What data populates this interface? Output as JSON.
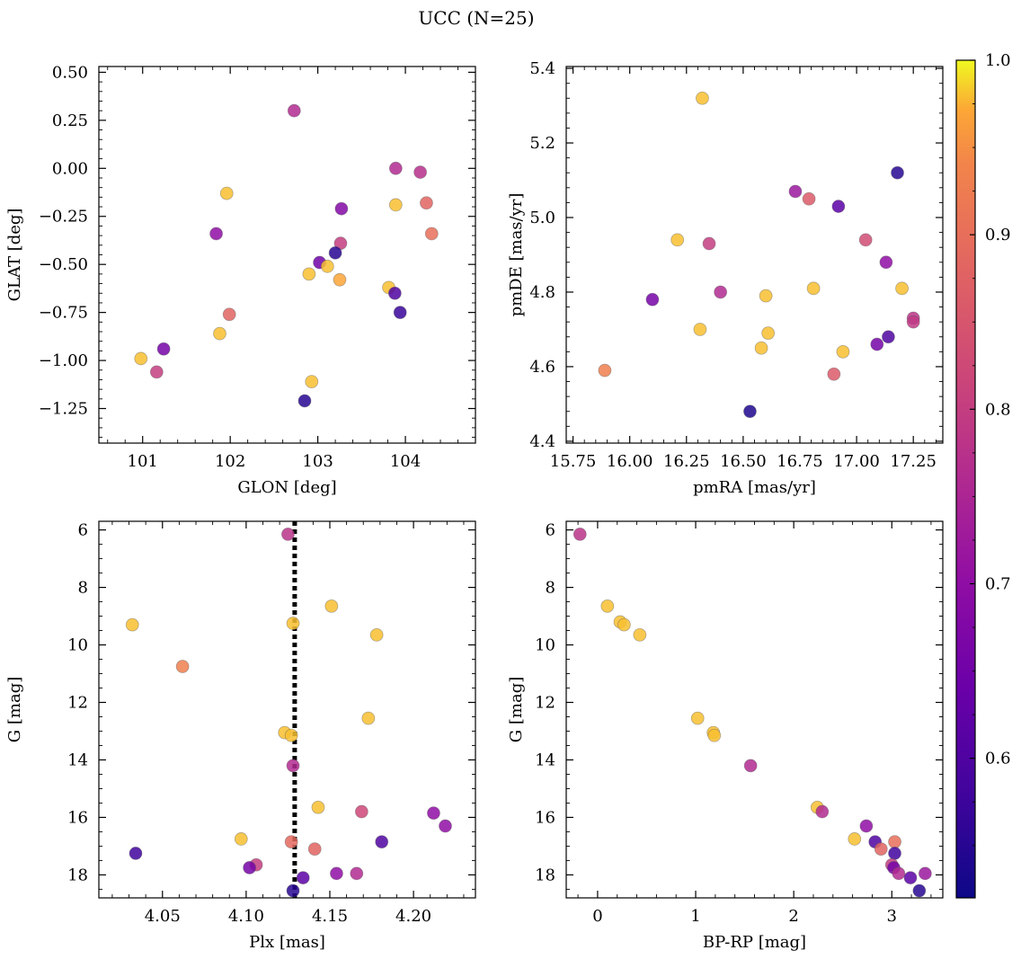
{
  "chart_data": {
    "type": "scatter",
    "title": "UCC (N=25)",
    "colorbar": {
      "colormap": "plasma",
      "range": [
        0.52,
        1.0
      ],
      "ticks": [
        0.6,
        0.7,
        0.8,
        0.9,
        1.0
      ],
      "tick_labels": [
        "0.6",
        "0.7",
        "0.8",
        "0.9",
        "1.0"
      ],
      "placement": "right"
    },
    "panels": [
      {
        "id": "glon-glat",
        "xlabel": "GLON [deg]",
        "ylabel": "GLAT [deg]",
        "xlim": [
          100.5,
          104.8
        ],
        "ylim": [
          -1.43,
          0.53
        ],
        "invert_y": false,
        "xticks": [
          101,
          102,
          103,
          104
        ],
        "xtick_labels": [
          "101",
          "102",
          "103",
          "104"
        ],
        "yticks": [
          -1.25,
          -1.0,
          -0.75,
          -0.5,
          -0.25,
          0.0,
          0.25,
          0.5
        ],
        "ytick_labels": [
          "−1.25",
          "−1.00",
          "−0.75",
          "−0.50",
          "−0.25",
          "0.00",
          "0.25",
          "0.50"
        ],
        "points": [
          {
            "x": 102.73,
            "y": 0.3,
            "c": 0.76
          },
          {
            "x": 103.89,
            "y": 0.0,
            "c": 0.76
          },
          {
            "x": 104.17,
            "y": -0.02,
            "c": 0.77
          },
          {
            "x": 101.96,
            "y": -0.13,
            "c": 0.98
          },
          {
            "x": 103.89,
            "y": -0.19,
            "c": 0.98
          },
          {
            "x": 104.24,
            "y": -0.18,
            "c": 0.88
          },
          {
            "x": 103.27,
            "y": -0.21,
            "c": 0.68
          },
          {
            "x": 104.3,
            "y": -0.34,
            "c": 0.9
          },
          {
            "x": 101.84,
            "y": -0.34,
            "c": 0.7
          },
          {
            "x": 103.26,
            "y": -0.39,
            "c": 0.8
          },
          {
            "x": 103.2,
            "y": -0.44,
            "c": 0.55
          },
          {
            "x": 103.02,
            "y": -0.49,
            "c": 0.65
          },
          {
            "x": 103.11,
            "y": -0.51,
            "c": 0.98
          },
          {
            "x": 102.9,
            "y": -0.55,
            "c": 0.98
          },
          {
            "x": 103.25,
            "y": -0.58,
            "c": 0.97
          },
          {
            "x": 103.81,
            "y": -0.62,
            "c": 0.98
          },
          {
            "x": 103.88,
            "y": -0.65,
            "c": 0.6
          },
          {
            "x": 103.94,
            "y": -0.75,
            "c": 0.57
          },
          {
            "x": 101.99,
            "y": -0.76,
            "c": 0.88
          },
          {
            "x": 101.88,
            "y": -0.86,
            "c": 0.98
          },
          {
            "x": 101.24,
            "y": -0.94,
            "c": 0.66
          },
          {
            "x": 100.98,
            "y": -0.99,
            "c": 0.98
          },
          {
            "x": 101.16,
            "y": -1.06,
            "c": 0.8
          },
          {
            "x": 102.93,
            "y": -1.11,
            "c": 0.98
          },
          {
            "x": 102.85,
            "y": -1.21,
            "c": 0.55
          }
        ]
      },
      {
        "id": "pmra-pmde",
        "xlabel": "pmRA [mas/yr]",
        "ylabel": "pmDE [mas/yr]",
        "xlim": [
          15.72,
          17.38
        ],
        "ylim": [
          4.395,
          5.405
        ],
        "invert_y": false,
        "xticks": [
          15.75,
          16.0,
          16.25,
          16.5,
          16.75,
          17.0,
          17.25
        ],
        "xtick_labels": [
          "15.75",
          "16.00",
          "16.25",
          "16.50",
          "16.75",
          "17.00",
          "17.25"
        ],
        "yticks": [
          4.4,
          4.6,
          4.8,
          5.0,
          5.2,
          5.4
        ],
        "ytick_labels": [
          "4.4",
          "4.6",
          "4.8",
          "5.0",
          "5.2",
          "5.4"
        ],
        "points": [
          {
            "x": 16.32,
            "y": 5.32,
            "c": 0.98
          },
          {
            "x": 17.18,
            "y": 5.12,
            "c": 0.55
          },
          {
            "x": 16.73,
            "y": 5.07,
            "c": 0.72
          },
          {
            "x": 16.79,
            "y": 5.05,
            "c": 0.86
          },
          {
            "x": 16.92,
            "y": 5.03,
            "c": 0.62
          },
          {
            "x": 16.21,
            "y": 4.94,
            "c": 0.98
          },
          {
            "x": 16.35,
            "y": 4.93,
            "c": 0.8
          },
          {
            "x": 17.04,
            "y": 4.94,
            "c": 0.83
          },
          {
            "x": 17.13,
            "y": 4.88,
            "c": 0.7
          },
          {
            "x": 17.2,
            "y": 4.81,
            "c": 0.98
          },
          {
            "x": 16.4,
            "y": 4.8,
            "c": 0.76
          },
          {
            "x": 16.81,
            "y": 4.81,
            "c": 0.98
          },
          {
            "x": 16.6,
            "y": 4.79,
            "c": 0.98
          },
          {
            "x": 16.1,
            "y": 4.78,
            "c": 0.66
          },
          {
            "x": 17.25,
            "y": 4.73,
            "c": 0.78
          },
          {
            "x": 17.25,
            "y": 4.72,
            "c": 0.79
          },
          {
            "x": 16.31,
            "y": 4.7,
            "c": 0.98
          },
          {
            "x": 16.61,
            "y": 4.69,
            "c": 0.98
          },
          {
            "x": 17.14,
            "y": 4.68,
            "c": 0.6
          },
          {
            "x": 17.09,
            "y": 4.66,
            "c": 0.66
          },
          {
            "x": 16.58,
            "y": 4.65,
            "c": 0.98
          },
          {
            "x": 16.94,
            "y": 4.64,
            "c": 0.98
          },
          {
            "x": 15.89,
            "y": 4.59,
            "c": 0.93
          },
          {
            "x": 16.9,
            "y": 4.58,
            "c": 0.86
          },
          {
            "x": 16.53,
            "y": 4.48,
            "c": 0.54
          }
        ]
      },
      {
        "id": "plx-g",
        "xlabel": "Plx [mas]",
        "ylabel": "G [mag]",
        "xlim": [
          4.012,
          4.237
        ],
        "ylim": [
          5.7,
          18.8
        ],
        "invert_y": true,
        "xticks": [
          4.05,
          4.1,
          4.15,
          4.2
        ],
        "xtick_labels": [
          "4.05",
          "4.10",
          "4.15",
          "4.20"
        ],
        "yticks": [
          6,
          8,
          10,
          12,
          14,
          16,
          18
        ],
        "ytick_labels": [
          "6",
          "8",
          "10",
          "12",
          "14",
          "16",
          "18"
        ],
        "vline": {
          "x": 4.129,
          "style": "dotted"
        },
        "points": [
          {
            "x": 4.125,
            "y": 6.15,
            "c": 0.78
          },
          {
            "x": 4.151,
            "y": 8.65,
            "c": 0.98
          },
          {
            "x": 4.032,
            "y": 9.3,
            "c": 0.98
          },
          {
            "x": 4.128,
            "y": 9.25,
            "c": 0.98
          },
          {
            "x": 4.178,
            "y": 9.65,
            "c": 0.98
          },
          {
            "x": 4.062,
            "y": 10.75,
            "c": 0.93
          },
          {
            "x": 4.173,
            "y": 12.55,
            "c": 0.98
          },
          {
            "x": 4.123,
            "y": 13.05,
            "c": 0.98
          },
          {
            "x": 4.127,
            "y": 13.15,
            "c": 0.98
          },
          {
            "x": 4.128,
            "y": 14.2,
            "c": 0.76
          },
          {
            "x": 4.143,
            "y": 15.65,
            "c": 0.98
          },
          {
            "x": 4.169,
            "y": 15.8,
            "c": 0.82
          },
          {
            "x": 4.212,
            "y": 15.85,
            "c": 0.7
          },
          {
            "x": 4.219,
            "y": 16.3,
            "c": 0.7
          },
          {
            "x": 4.097,
            "y": 16.75,
            "c": 0.98
          },
          {
            "x": 4.127,
            "y": 16.85,
            "c": 0.89
          },
          {
            "x": 4.181,
            "y": 16.85,
            "c": 0.6
          },
          {
            "x": 4.141,
            "y": 17.1,
            "c": 0.88
          },
          {
            "x": 4.034,
            "y": 17.25,
            "c": 0.58
          },
          {
            "x": 4.106,
            "y": 17.65,
            "c": 0.8
          },
          {
            "x": 4.102,
            "y": 17.75,
            "c": 0.66
          },
          {
            "x": 4.154,
            "y": 17.95,
            "c": 0.7
          },
          {
            "x": 4.166,
            "y": 17.95,
            "c": 0.76
          },
          {
            "x": 4.134,
            "y": 18.1,
            "c": 0.62
          },
          {
            "x": 4.128,
            "y": 18.55,
            "c": 0.55
          }
        ]
      },
      {
        "id": "bprp-g",
        "xlabel": "BP-RP [mag]",
        "ylabel": "G [mag]",
        "xlim": [
          -0.32,
          3.52
        ],
        "ylim": [
          5.7,
          18.8
        ],
        "invert_y": true,
        "xticks": [
          0,
          1,
          2,
          3
        ],
        "xtick_labels": [
          "0",
          "1",
          "2",
          "3"
        ],
        "yticks": [
          6,
          8,
          10,
          12,
          14,
          16,
          18
        ],
        "ytick_labels": [
          "6",
          "8",
          "10",
          "12",
          "14",
          "16",
          "18"
        ],
        "points": [
          {
            "x": -0.18,
            "y": 6.15,
            "c": 0.78
          },
          {
            "x": 0.1,
            "y": 8.65,
            "c": 0.98
          },
          {
            "x": 0.23,
            "y": 9.2,
            "c": 0.98
          },
          {
            "x": 0.27,
            "y": 9.3,
            "c": 0.98
          },
          {
            "x": 0.43,
            "y": 9.65,
            "c": 0.98
          },
          {
            "x": 1.02,
            "y": 12.55,
            "c": 0.98
          },
          {
            "x": 1.18,
            "y": 13.05,
            "c": 0.98
          },
          {
            "x": 1.19,
            "y": 13.15,
            "c": 0.98
          },
          {
            "x": 1.56,
            "y": 14.2,
            "c": 0.76
          },
          {
            "x": 2.24,
            "y": 15.65,
            "c": 0.98
          },
          {
            "x": 2.29,
            "y": 15.8,
            "c": 0.76
          },
          {
            "x": 2.74,
            "y": 16.3,
            "c": 0.7
          },
          {
            "x": 2.62,
            "y": 16.75,
            "c": 0.98
          },
          {
            "x": 2.83,
            "y": 16.85,
            "c": 0.6
          },
          {
            "x": 3.03,
            "y": 16.85,
            "c": 0.9
          },
          {
            "x": 2.89,
            "y": 17.1,
            "c": 0.88
          },
          {
            "x": 3.03,
            "y": 17.25,
            "c": 0.58
          },
          {
            "x": 3.0,
            "y": 17.65,
            "c": 0.8
          },
          {
            "x": 3.02,
            "y": 17.75,
            "c": 0.66
          },
          {
            "x": 3.07,
            "y": 17.95,
            "c": 0.76
          },
          {
            "x": 3.34,
            "y": 17.95,
            "c": 0.72
          },
          {
            "x": 3.19,
            "y": 18.1,
            "c": 0.62
          },
          {
            "x": 3.28,
            "y": 18.55,
            "c": 0.55
          }
        ]
      }
    ]
  }
}
